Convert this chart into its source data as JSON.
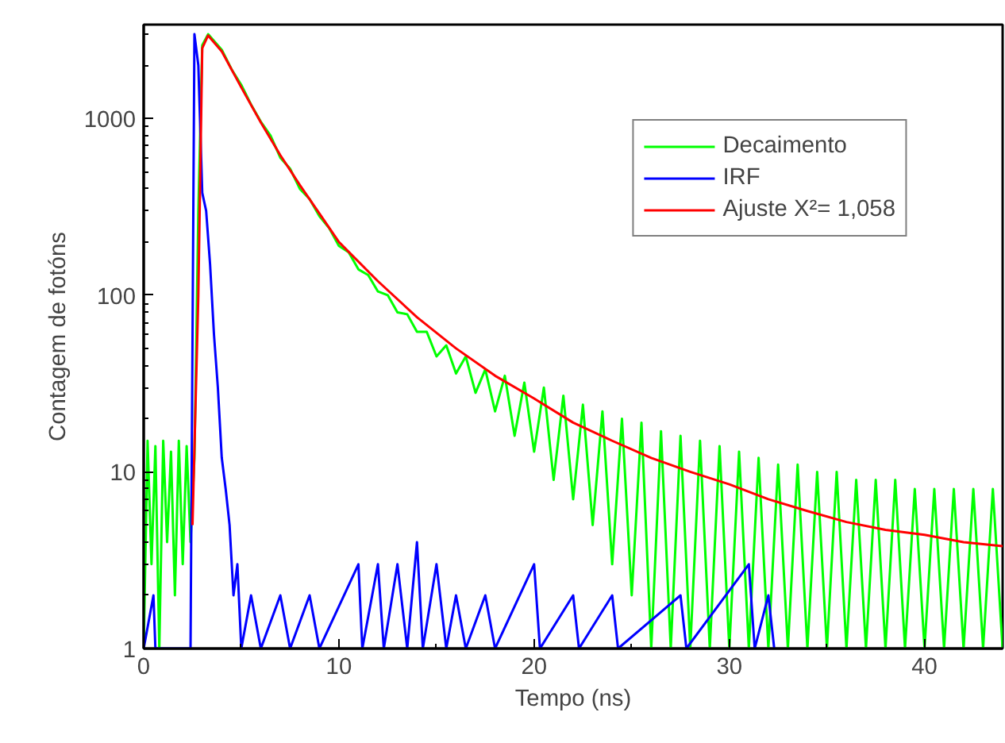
{
  "chart_data": {
    "type": "line",
    "xlabel": "Tempo (ns)",
    "ylabel": "Contagem de fotóns",
    "log": "y",
    "grid": false,
    "legend": "top right",
    "marker": "none",
    "line_style": "solid",
    "xlim": [
      0,
      44
    ],
    "ylim": [
      1,
      3400
    ],
    "xticks": [
      0,
      10,
      20,
      30,
      40
    ],
    "yticks": [
      1,
      10,
      100,
      1000
    ],
    "series": [
      {
        "name": "Decaimento",
        "color": "#00ff00",
        "x": [
          0,
          0.2,
          0.4,
          0.6,
          0.8,
          1.0,
          1.2,
          1.4,
          1.6,
          1.8,
          2.0,
          2.2,
          2.4,
          2.6,
          2.8,
          3.0,
          3.3,
          4,
          4.5,
          5,
          5.5,
          6,
          6.5,
          7,
          7.5,
          8,
          8.5,
          9,
          9.5,
          10,
          10.5,
          11,
          11.5,
          12,
          12.5,
          13,
          13.5,
          14,
          14.5,
          15,
          15.5,
          16,
          16.5,
          17,
          17.5,
          18,
          18.5,
          19,
          19.5,
          20,
          20.5,
          21,
          21.5,
          22,
          22.5,
          23,
          23.5,
          24,
          24.5,
          25,
          25.5,
          26,
          26.5,
          27,
          27.5,
          28,
          28.5,
          29,
          29.5,
          30,
          30.5,
          31,
          31.5,
          32,
          32.5,
          33,
          33.5,
          34,
          34.5,
          35,
          35.5,
          36,
          36.5,
          37,
          37.5,
          38,
          38.5,
          39,
          39.5,
          40,
          40.5,
          41,
          41.5,
          42,
          42.5,
          43,
          43.5,
          44
        ],
        "values": [
          1,
          15,
          3,
          14,
          1,
          15,
          4,
          13,
          2,
          15,
          3,
          14,
          4,
          12,
          300,
          2600,
          3000,
          2450,
          1900,
          1550,
          1200,
          960,
          800,
          600,
          520,
          400,
          350,
          280,
          240,
          190,
          175,
          140,
          130,
          105,
          100,
          80,
          78,
          62,
          62,
          45,
          52,
          36,
          45,
          28,
          38,
          22,
          35,
          16,
          32,
          13,
          30,
          9,
          27,
          7,
          24,
          5,
          22,
          3,
          20,
          2,
          19,
          1,
          17,
          1,
          16,
          1,
          15,
          1,
          14,
          1,
          13,
          1,
          12,
          1,
          11,
          1,
          11,
          1,
          10,
          1,
          10,
          1,
          9,
          1,
          9,
          1,
          9,
          1,
          8,
          1,
          8,
          1,
          8,
          1,
          8,
          1,
          8,
          1
        ]
      },
      {
        "name": "IRF",
        "color": "#0000ff",
        "x": [
          0,
          0.5,
          0.6,
          2.4,
          2.6,
          2.8,
          3.0,
          3.2,
          3.4,
          3.6,
          3.8,
          4.0,
          4.2,
          4.4,
          4.6,
          4.8,
          5.0,
          5.5,
          6,
          7,
          7.5,
          8.5,
          9,
          11,
          11.2,
          12,
          12.3,
          13,
          13.5,
          14,
          14.3,
          15,
          15.5,
          16,
          16.5,
          17.5,
          18,
          20,
          20.3,
          22,
          22.3,
          24,
          24.3,
          27.5,
          27.8,
          31,
          31.3,
          32,
          32.3
        ],
        "values": [
          1,
          2,
          1,
          1,
          3000,
          2000,
          380,
          300,
          150,
          60,
          30,
          12,
          8,
          5,
          2,
          3,
          1,
          2,
          1,
          2,
          1,
          2,
          1,
          3,
          1,
          3,
          1,
          3,
          1,
          4,
          1,
          3,
          1,
          2,
          1,
          2,
          1,
          3,
          1,
          2,
          1,
          2,
          1,
          2,
          1,
          3,
          1,
          2,
          1
        ]
      },
      {
        "name": "Ajuste X²= 1,058",
        "color": "#ff0000",
        "x": [
          2.5,
          2.8,
          3.0,
          3.3,
          4,
          5,
          6,
          7,
          8,
          9,
          10,
          12,
          14,
          16,
          18,
          20,
          22,
          24,
          26,
          28,
          30,
          32,
          34,
          36,
          38,
          40,
          42,
          44
        ],
        "values": [
          5,
          100,
          2500,
          2950,
          2400,
          1500,
          950,
          620,
          420,
          290,
          200,
          120,
          75,
          50,
          35,
          26,
          19,
          15,
          12,
          10,
          8.5,
          7,
          6,
          5.2,
          4.7,
          4.4,
          4.0,
          3.8
        ]
      }
    ]
  }
}
